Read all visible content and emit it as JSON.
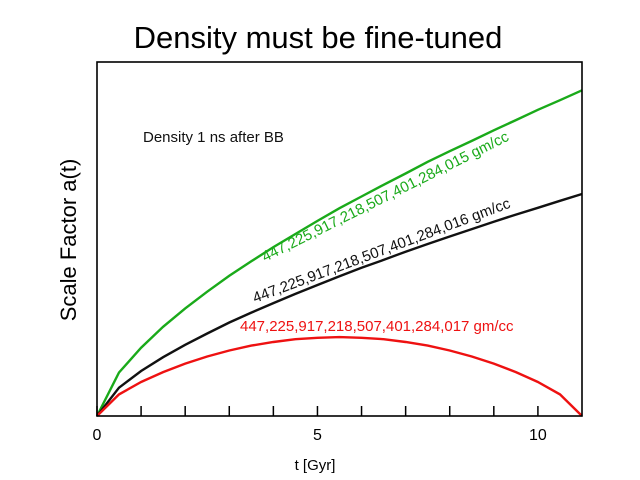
{
  "chart_data": {
    "type": "line",
    "title": "Density must be fine-tuned",
    "xlabel": "t [Gyr]",
    "ylabel": "Scale Factor a(t)",
    "xlim": [
      0,
      11
    ],
    "ylim": [
      0,
      1
    ],
    "xticks": [
      0,
      5,
      10
    ],
    "xtick_labels": [
      "0",
      "5",
      "10"
    ],
    "minor_xticks": [
      1,
      2,
      3,
      4,
      6,
      7,
      8,
      9
    ],
    "grid": false,
    "annotation": "Density 1 ns after BB",
    "x": [
      0,
      0.5,
      1,
      1.5,
      2,
      2.5,
      3,
      3.5,
      4,
      4.5,
      5,
      5.5,
      6,
      6.5,
      7,
      7.5,
      8,
      8.5,
      9,
      9.5,
      10,
      10.5,
      11
    ],
    "series": [
      {
        "name": "447,225,917,218,507,401,284,015 gm/cc",
        "color": "#1aaa1a",
        "values": [
          0,
          0.123,
          0.193,
          0.252,
          0.304,
          0.351,
          0.396,
          0.437,
          0.477,
          0.514,
          0.551,
          0.587,
          0.62,
          0.653,
          0.685,
          0.718,
          0.748,
          0.777,
          0.807,
          0.836,
          0.865,
          0.892,
          0.92
        ]
      },
      {
        "name": "447,225,917,218,507,401,284,016 gm/cc",
        "color": "#111111",
        "values": [
          0,
          0.08,
          0.127,
          0.166,
          0.201,
          0.233,
          0.264,
          0.292,
          0.319,
          0.345,
          0.37,
          0.395,
          0.419,
          0.441,
          0.464,
          0.486,
          0.507,
          0.528,
          0.549,
          0.569,
          0.588,
          0.608,
          0.627
        ]
      },
      {
        "name": "447,225,917,218,507,401,284,017 gm/cc",
        "color": "#ee1111",
        "values": [
          0,
          0.061,
          0.096,
          0.124,
          0.148,
          0.168,
          0.185,
          0.199,
          0.209,
          0.217,
          0.221,
          0.223,
          0.221,
          0.217,
          0.209,
          0.199,
          0.185,
          0.168,
          0.148,
          0.124,
          0.096,
          0.061,
          0
        ]
      }
    ]
  }
}
